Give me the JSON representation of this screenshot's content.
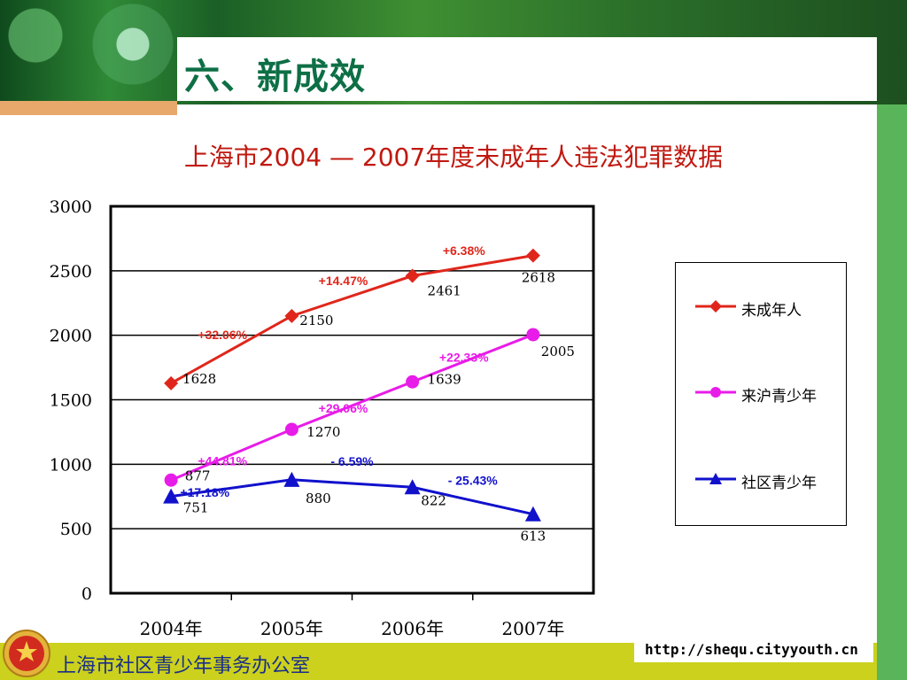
{
  "slide": {
    "title": "六、新成效",
    "footer_org": "上海市社区青少年事务办公室",
    "url": "http://shequ.cityyouth.cn",
    "colors": {
      "title": "#0d6f45",
      "footer_bar": "#cbd11c",
      "side_bar": "#5ab55a",
      "chart_title": "#c0180f"
    }
  },
  "chart_data": {
    "type": "line",
    "title": "上海市2004 — 2007年度未成年人违法犯罪数据",
    "categories": [
      "2004年",
      "2005年",
      "2006年",
      "2007年"
    ],
    "ylim": [
      0,
      3000
    ],
    "yticks": [
      0,
      500,
      1000,
      1500,
      2000,
      2500,
      3000
    ],
    "grid": true,
    "legend_position": "right",
    "series": [
      {
        "name": "未成年人",
        "color": "#e0261b",
        "marker": "diamond",
        "values": [
          1628,
          2150,
          2461,
          2618
        ],
        "value_labels": [
          "1628",
          "2150",
          "2461",
          "2618"
        ],
        "change_labels": [
          "+32.06%",
          "+14.47%",
          "+6.38%"
        ],
        "change_color": "#e0261b"
      },
      {
        "name": "来沪青少年",
        "color": "#e81ce8",
        "marker": "circle",
        "values": [
          877,
          1270,
          1639,
          2005
        ],
        "value_labels": [
          "877",
          "1270",
          "1639",
          "2005"
        ],
        "change_labels": [
          "+44.81%",
          "+29.06%",
          "+22.33%"
        ],
        "change_color": "#e81ce8"
      },
      {
        "name": "社区青少年",
        "color": "#1111cc",
        "marker": "triangle",
        "values": [
          751,
          880,
          822,
          613
        ],
        "value_labels": [
          "751",
          "880",
          "822",
          "613"
        ],
        "change_labels": [
          "+17.18%",
          "- 6.59%",
          "- 25.43%"
        ],
        "change_color": "#1111cc"
      }
    ]
  }
}
